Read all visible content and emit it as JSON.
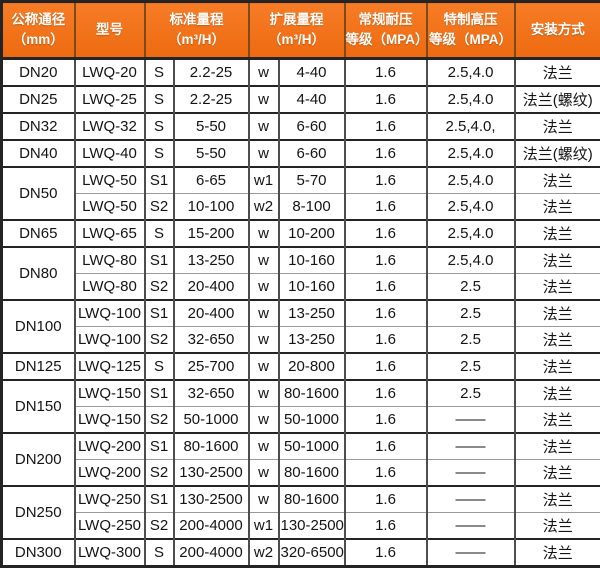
{
  "colors": {
    "header_bg": "#f67c26",
    "header_bg_dark": "#ee6a10",
    "header_text": "#ffffff",
    "header_border": "#7a4a20",
    "border_dark": "#242424",
    "border_mid": "#4d4d4d",
    "border_light": "#9a9a9a",
    "text": "#141414",
    "page_bg": "#ffffff"
  },
  "chart_data": {
    "type": "table",
    "headers": [
      {
        "label": "公称通径\n（mm）"
      },
      {
        "label": "型号"
      },
      {
        "label": "标准量程\n（m³/H）"
      },
      {
        "label": "扩展量程\n（m³/H）"
      },
      {
        "label": "常规耐压\n等级（MPA）"
      },
      {
        "label": "特制高压\n等级（MPA）"
      },
      {
        "label": "安装方式"
      }
    ],
    "groups": [
      {
        "dn": "DN20",
        "rows": [
          {
            "model": "LWQ-20",
            "s": "S",
            "std": "2.2-25",
            "w": "w",
            "ext": "4-40",
            "pressure": "1.6",
            "high_pressure": "2.5,4.0",
            "install": "法兰"
          }
        ]
      },
      {
        "dn": "DN25",
        "rows": [
          {
            "model": "LWQ-25",
            "s": "S",
            "std": "2.2-25",
            "w": "w",
            "ext": "4-40",
            "pressure": "1.6",
            "high_pressure": "2.5,4.0",
            "install": "法兰(螺纹)"
          }
        ]
      },
      {
        "dn": "DN32",
        "rows": [
          {
            "model": "LWQ-32",
            "s": "S",
            "std": "5-50",
            "w": "w",
            "ext": "6-60",
            "pressure": "1.6",
            "high_pressure": "2.5,4.0,",
            "install": "法兰"
          }
        ]
      },
      {
        "dn": "DN40",
        "rows": [
          {
            "model": "LWQ-40",
            "s": "S",
            "std": "5-50",
            "w": "w",
            "ext": "6-60",
            "pressure": "1.6",
            "high_pressure": "2.5,4.0",
            "install": "法兰(螺纹)"
          }
        ]
      },
      {
        "dn": "DN50",
        "rows": [
          {
            "model": "LWQ-50",
            "s": "S1",
            "std": "6-65",
            "w": "w1",
            "ext": "5-70",
            "pressure": "1.6",
            "high_pressure": "2.5,4.0",
            "install": "法兰"
          },
          {
            "model": "LWQ-50",
            "s": "S2",
            "std": "10-100",
            "w": "w2",
            "ext": "8-100",
            "pressure": "1.6",
            "high_pressure": "2.5,4.0",
            "install": "法兰"
          }
        ]
      },
      {
        "dn": "DN65",
        "rows": [
          {
            "model": "LWQ-65",
            "s": "S",
            "std": "15-200",
            "w": "w",
            "ext": "10-200",
            "pressure": "1.6",
            "high_pressure": "2.5,4.0",
            "install": "法兰"
          }
        ]
      },
      {
        "dn": "DN80",
        "rows": [
          {
            "model": "LWQ-80",
            "s": "S1",
            "std": "13-250",
            "w": "w",
            "ext": "10-160",
            "pressure": "1.6",
            "high_pressure": "2.5,4.0",
            "install": "法兰"
          },
          {
            "model": "LWQ-80",
            "s": "S2",
            "std": "20-400",
            "w": "w",
            "ext": "10-160",
            "pressure": "1.6",
            "high_pressure": "2.5",
            "install": "法兰"
          }
        ]
      },
      {
        "dn": "DN100",
        "rows": [
          {
            "model": "LWQ-100",
            "s": "S1",
            "std": "20-400",
            "w": "w",
            "ext": "13-250",
            "pressure": "1.6",
            "high_pressure": "2.5",
            "install": "法兰"
          },
          {
            "model": "LWQ-100",
            "s": "S2",
            "std": "32-650",
            "w": "w",
            "ext": "13-250",
            "pressure": "1.6",
            "high_pressure": "2.5",
            "install": "法兰"
          }
        ]
      },
      {
        "dn": "DN125",
        "rows": [
          {
            "model": "LWQ-125",
            "s": "S",
            "std": "25-700",
            "w": "w",
            "ext": "20-800",
            "pressure": "1.6",
            "high_pressure": "2.5",
            "install": "法兰"
          }
        ]
      },
      {
        "dn": "DN150",
        "rows": [
          {
            "model": "LWQ-150",
            "s": "S1",
            "std": "32-650",
            "w": "w",
            "ext": "80-1600",
            "pressure": "1.6",
            "high_pressure": "2.5",
            "install": "法兰"
          },
          {
            "model": "LWQ-150",
            "s": "S2",
            "std": "50-1000",
            "w": "w",
            "ext": "50-1000",
            "pressure": "1.6",
            "high_pressure": "——",
            "install": "法兰"
          }
        ]
      },
      {
        "dn": "DN200",
        "rows": [
          {
            "model": "LWQ-200",
            "s": "S1",
            "std": "80-1600",
            "w": "w",
            "ext": "50-1000",
            "pressure": "1.6",
            "high_pressure": "——",
            "install": "法兰"
          },
          {
            "model": "LWQ-200",
            "s": "S2",
            "std": "130-2500",
            "w": "w",
            "ext": "80-1600",
            "pressure": "1.6",
            "high_pressure": "——",
            "install": "法兰"
          }
        ]
      },
      {
        "dn": "DN250",
        "rows": [
          {
            "model": "LWQ-250",
            "s": "S1",
            "std": "130-2500",
            "w": "w",
            "ext": "80-1600",
            "pressure": "1.6",
            "high_pressure": "——",
            "install": "法兰"
          },
          {
            "model": "LWQ-250",
            "s": "S2",
            "std": "200-4000",
            "w": "w1",
            "ext": "130-2500",
            "pressure": "1.6",
            "high_pressure": "——",
            "install": "法兰"
          }
        ]
      },
      {
        "dn": "DN300",
        "rows": [
          {
            "model": "LWQ-300",
            "s": "S",
            "std": "200-4000",
            "w": "w2",
            "ext": "320-6500",
            "pressure": "1.6",
            "high_pressure": "——",
            "install": "法兰"
          }
        ]
      }
    ]
  }
}
